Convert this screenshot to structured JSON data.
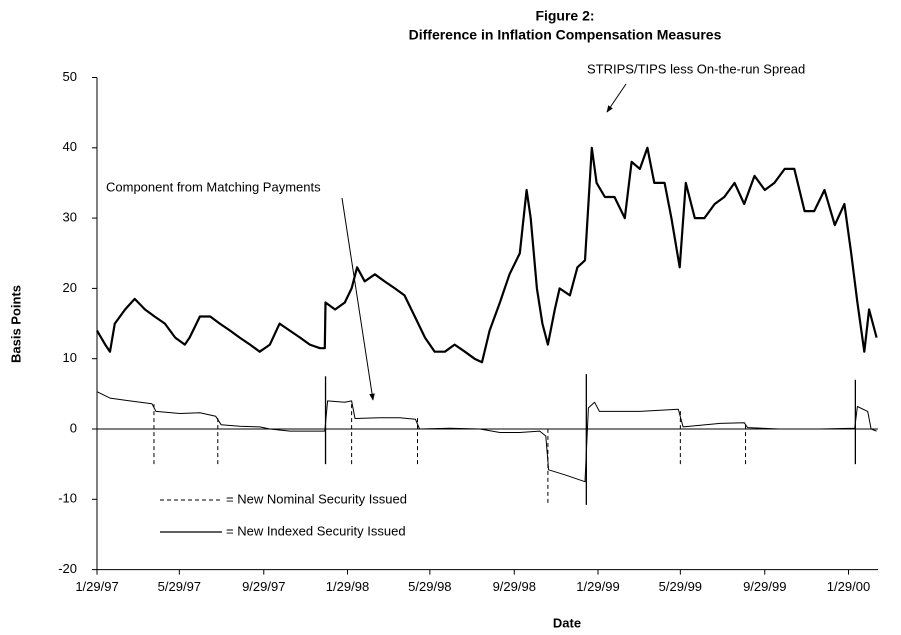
{
  "chart_data": {
    "type": "line",
    "title": "Figure 2:",
    "subtitle": "Difference in Inflation Compensation Measures",
    "xlabel": "Date",
    "ylabel": "Basis Points",
    "annotations": [
      "STRIPS/TIPS less On-the-run Spread",
      "Component from Matching Payments"
    ],
    "xlim": [
      "1/29/97",
      "3/12/00"
    ],
    "xticks": [
      "1/29/97",
      "5/29/97",
      "9/29/97",
      "1/29/98",
      "5/29/98",
      "9/29/98",
      "1/29/99",
      "5/29/99",
      "9/29/99",
      "1/29/00"
    ],
    "ylim": [
      -20,
      50
    ],
    "yticks": [
      -20,
      -10,
      0,
      10,
      20,
      30,
      40,
      50
    ],
    "series": [
      {
        "name": "STRIPS/TIPS less On-the-run Spread",
        "color": "#000000",
        "x": [
          "1/29/97",
          "2/10/97",
          "2/17/97",
          "2/24/97",
          "3/11/97",
          "3/25/97",
          "4/9/97",
          "4/23/97",
          "5/8/97",
          "5/23/97",
          "6/6/97",
          "6/13/97",
          "6/28/97",
          "7/13/97",
          "7/27/97",
          "8/11/97",
          "8/25/97",
          "9/9/97",
          "9/23/97",
          "10/8/97",
          "10/22/97",
          "11/6/97",
          "11/21/97",
          "12/5/97",
          "12/20/97",
          "12/27/97",
          "12/28/97",
          "1/11/98",
          "1/25/98",
          "2/4/98",
          "2/12/98",
          "2/23/98",
          "3/10/98",
          "3/24/98",
          "4/8/98",
          "4/22/98",
          "5/7/98",
          "5/22/98",
          "6/5/98",
          "6/20/98",
          "7/4/98",
          "7/19/98",
          "8/2/98",
          "8/13/98",
          "8/24/98",
          "9/8/98",
          "9/22/98",
          "10/7/98",
          "10/17/98",
          "10/23/98",
          "11/1/98",
          "11/9/98",
          "11/17/98",
          "11/27/98",
          "12/4/98",
          "12/19/98",
          "12/30/98",
          "1/10/99",
          "1/20/99",
          "1/27/99",
          "2/8/99",
          "2/22/99",
          "3/9/99",
          "3/19/99",
          "3/31/99",
          "4/11/99",
          "4/21/99",
          "5/6/99",
          "5/16/99",
          "5/28/99",
          "6/6/99",
          "6/19/99",
          "7/3/99",
          "7/18/99",
          "8/1/99",
          "8/16/99",
          "8/30/99",
          "9/14/99",
          "9/29/99",
          "10/13/99",
          "10/28/99",
          "11/11/99",
          "11/26/99",
          "12/10/99",
          "12/25/99",
          "1/9/00",
          "1/23/00",
          "2/2/00",
          "2/11/00",
          "2/21/00",
          "2/28/00",
          "3/10/00"
        ],
        "values": [
          14,
          12,
          11,
          15,
          17,
          18.5,
          17,
          16,
          15,
          13,
          12,
          13,
          16,
          16,
          15,
          14,
          13,
          12,
          11,
          12,
          15,
          14,
          13,
          12,
          11.5,
          11.5,
          18,
          17,
          18,
          20,
          23,
          21,
          22,
          21,
          20,
          19,
          16,
          13,
          11,
          11,
          12,
          11,
          10,
          9.5,
          14,
          18,
          22,
          25,
          34,
          30,
          20,
          15,
          12,
          17,
          20,
          19,
          23,
          24,
          40,
          35,
          33,
          33,
          30,
          38,
          37,
          40,
          35,
          35,
          30,
          23,
          35,
          30,
          30,
          32,
          33,
          35,
          32,
          36,
          34,
          35,
          37,
          37,
          31,
          31,
          34,
          29,
          32,
          25,
          18,
          11,
          17,
          13
        ]
      },
      {
        "name": "Component from Matching Payments",
        "color": "#000000",
        "x": [
          "1/29/97",
          "2/17/97",
          "3/18/97",
          "4/19/97",
          "4/25/97",
          "5/30/97",
          "6/28/97",
          "7/21/97",
          "7/29/97",
          "8/25/97",
          "9/23/97",
          "10/8/97",
          "11/6/97",
          "12/27/97",
          "12/31/97",
          "1/25/98",
          "2/4/98",
          "2/9/98",
          "3/17/98",
          "4/15/98",
          "5/8/98",
          "5/14/98",
          "6/27/98",
          "8/10/98",
          "9/8/98",
          "10/7/98",
          "11/5/98",
          "11/14/98",
          "11/18/98",
          "12/11/98",
          "12/26/98",
          "1/10/99",
          "1/15/99",
          "1/24/99",
          "1/31/99",
          "3/31/99",
          "5/26/99",
          "6/2/99",
          "7/26/99",
          "8/30/99",
          "9/4/99",
          "10/20/99",
          "12/18/99",
          "2/7/00",
          "2/11/00",
          "2/26/00",
          "3/2/00",
          "3/10/00"
        ],
        "values": [
          5.3,
          4.4,
          4,
          3.6,
          2.5,
          2.2,
          2.3,
          1.8,
          0.6,
          0.4,
          0.3,
          0,
          -0.3,
          -0.3,
          4,
          3.8,
          4,
          1.5,
          1.6,
          1.6,
          1.4,
          0,
          0.1,
          0,
          -0.5,
          -0.5,
          -0.3,
          -1,
          -5.8,
          -6.5,
          -7,
          -7.5,
          3,
          3.8,
          2.5,
          2.5,
          2.8,
          0.3,
          0.8,
          0.9,
          0.2,
          0,
          0,
          0.1,
          3.2,
          2.5,
          0,
          -0.3
        ]
      }
    ],
    "event_legend": [
      {
        "style": "dashed",
        "label": "= New Nominal Security Issued"
      },
      {
        "style": "solid",
        "label": "= New Indexed Security Issued"
      }
    ],
    "events": [
      {
        "x": "4/22/97",
        "style": "dashed",
        "range": [
          -5,
          3.7
        ]
      },
      {
        "x": "7/24/97",
        "style": "dashed",
        "range": [
          -5,
          2
        ]
      },
      {
        "x": "12/28/97",
        "style": "solid",
        "range": [
          -5,
          7.5
        ]
      },
      {
        "x": "2/4/98",
        "style": "dashed",
        "range": [
          -5,
          4
        ]
      },
      {
        "x": "5/11/98",
        "style": "dashed",
        "range": [
          -5,
          1.8
        ]
      },
      {
        "x": "11/17/98",
        "style": "dashed",
        "range": [
          -10.5,
          0
        ]
      },
      {
        "x": "1/12/99",
        "style": "solid",
        "range": [
          -10.8,
          7.8
        ]
      },
      {
        "x": "5/29/99",
        "style": "dashed",
        "range": [
          -5,
          2.8
        ]
      },
      {
        "x": "9/1/99",
        "style": "dashed",
        "range": [
          -5,
          1
        ]
      },
      {
        "x": "2/8/00",
        "style": "solid",
        "range": [
          -5,
          7
        ]
      }
    ]
  }
}
